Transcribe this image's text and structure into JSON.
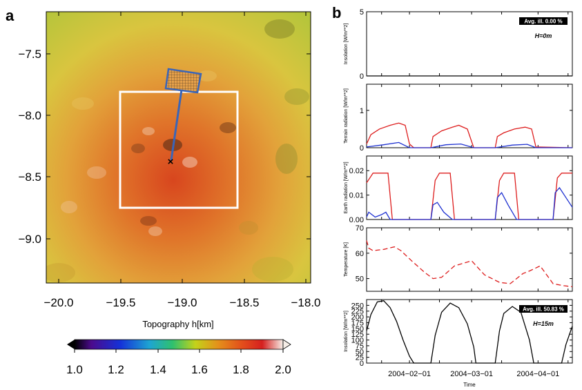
{
  "panel_a": {
    "label": "a",
    "xlabel": "Topography h[km]",
    "x_ticks": [
      "−20.0",
      "−19.5",
      "−19.0",
      "−18.5",
      "−18.0"
    ],
    "y_ticks": [
      "−7.5",
      "−8.0",
      "−8.5",
      "−9.0"
    ],
    "colorbar_ticks": [
      "1.0",
      "1.2",
      "1.4",
      "1.6",
      "1.8",
      "2.0"
    ]
  },
  "panel_b": {
    "label": "b",
    "xlabel": "Time",
    "x_ticks": [
      "2004−02−01",
      "2004−03−01",
      "2004−04−01"
    ],
    "subplots": [
      {
        "ylabel": "Insolation [W/m**2]",
        "y_ticks": [
          "0",
          "5"
        ],
        "badge": "Avg. ill. 0.00 %",
        "note": "H=0m"
      },
      {
        "ylabel": "Terrain radiation [W/m**2]",
        "y_ticks": [
          "0",
          "1"
        ]
      },
      {
        "ylabel": "Earth radiation [W/m**2]",
        "y_ticks": [
          "0.00",
          "0.01",
          "0.02"
        ]
      },
      {
        "ylabel": "Temperature [K]",
        "y_ticks": [
          "50",
          "60",
          "70"
        ]
      },
      {
        "ylabel": "Insolation [W/m**2]",
        "y_ticks": [
          "0",
          "25",
          "50",
          "75",
          "100",
          "125",
          "150",
          "175",
          "200",
          "225",
          "250"
        ],
        "badge": "Avg. ill. 50.83 %",
        "note": "H=15m"
      }
    ]
  },
  "colors": {
    "red": "#dd1c1c",
    "blue": "#1c2fd0",
    "black": "#000000",
    "box": "#ffffff",
    "probe": "#3a65b8"
  },
  "chart_data": [
    {
      "type": "heatmap",
      "title": "",
      "xlabel": "Topography h[km]",
      "ylabel": "",
      "xlim": [
        -20.1,
        -17.99
      ],
      "ylim": [
        -9.35,
        -7.1
      ],
      "colorbar": {
        "min": 1.0,
        "max": 2.0,
        "label": ""
      },
      "box_extent": {
        "x": [
          -19.5,
          -18.55
        ],
        "y": [
          -8.75,
          -7.8
        ]
      },
      "point": {
        "x": -19.08,
        "y": -8.37,
        "marker": "x"
      }
    },
    {
      "type": "line",
      "xlabel": "Time",
      "x_range": [
        "2004-01-12",
        "2004-04-17"
      ],
      "panels": [
        {
          "ylabel": "Insolation [W/m**2]",
          "ylim": [
            0,
            5
          ],
          "series": [
            {
              "color": "#000000",
              "x": [
                "2004-01-12",
                "2004-04-17"
              ],
              "y": [
                0,
                0
              ]
            }
          ]
        },
        {
          "ylabel": "Terrain radiation [W/m**2]",
          "ylim": [
            0,
            1.7
          ],
          "series": [
            {
              "color": "#dd1c1c",
              "x": [
                "2004-01-12",
                "2004-01-14",
                "2004-01-18",
                "2004-01-23",
                "2004-01-27",
                "2004-01-30",
                "2004-02-01",
                "2004-02-03",
                "2004-02-11",
                "2004-02-12",
                "2004-02-16",
                "2004-02-21",
                "2004-02-24",
                "2004-02-28",
                "2004-03-02",
                "2004-03-12",
                "2004-03-13",
                "2004-03-16",
                "2004-03-21",
                "2004-03-26",
                "2004-03-29",
                "2004-03-31",
                "2004-04-17"
              ],
              "y": [
                0.1,
                0.35,
                0.5,
                0.6,
                0.66,
                0.6,
                0.1,
                0,
                0,
                0.3,
                0.45,
                0.55,
                0.6,
                0.5,
                0,
                0,
                0.3,
                0.4,
                0.5,
                0.55,
                0.5,
                0.02,
                0
              ]
            },
            {
              "color": "#1c2fd0",
              "x": [
                "2004-01-12",
                "2004-01-20",
                "2004-01-27",
                "2004-02-01",
                "2004-02-11",
                "2004-02-18",
                "2004-02-25",
                "2004-03-02",
                "2004-03-12",
                "2004-03-20",
                "2004-03-27",
                "2004-03-31",
                "2004-04-17"
              ],
              "y": [
                0.02,
                0.08,
                0.14,
                0,
                0,
                0.08,
                0.1,
                0,
                0,
                0.07,
                0.09,
                0,
                0
              ]
            }
          ]
        },
        {
          "ylabel": "Earth radiation [W/m**2]",
          "ylim": [
            0,
            0.026
          ],
          "series": [
            {
              "color": "#dd1c1c",
              "x": [
                "2004-01-12",
                "2004-01-15",
                "2004-01-17",
                "2004-01-22",
                "2004-01-24",
                "2004-02-11",
                "2004-02-13",
                "2004-02-15",
                "2004-02-20",
                "2004-02-22",
                "2004-03-12",
                "2004-03-14",
                "2004-03-16",
                "2004-03-21",
                "2004-03-23",
                "2004-04-08",
                "2004-04-10",
                "2004-04-12",
                "2004-04-17"
              ],
              "y": [
                0.015,
                0.019,
                0.019,
                0.019,
                0,
                0,
                0.016,
                0.019,
                0.019,
                0,
                0,
                0.016,
                0.019,
                0.019,
                0,
                0,
                0.017,
                0.019,
                0.019
              ]
            },
            {
              "color": "#1c2fd0",
              "x": [
                "2004-01-12",
                "2004-01-13",
                "2004-01-16",
                "2004-01-19",
                "2004-01-21",
                "2004-01-23",
                "2004-02-11",
                "2004-02-12",
                "2004-02-14",
                "2004-02-17",
                "2004-02-21",
                "2004-03-12",
                "2004-03-13",
                "2004-03-15",
                "2004-03-18",
                "2004-03-22",
                "2004-04-08",
                "2004-04-09",
                "2004-04-11",
                "2004-04-14",
                "2004-04-17"
              ],
              "y": [
                0.001,
                0.003,
                0.001,
                0.002,
                0.003,
                0,
                0,
                0.006,
                0.007,
                0.003,
                0,
                0,
                0.009,
                0.011,
                0.006,
                0,
                0,
                0.011,
                0.013,
                0.009,
                0.005
              ]
            }
          ]
        },
        {
          "ylabel": "Temperature [K]",
          "ylim": [
            45,
            70
          ],
          "series": [
            {
              "color": "#dd1c1c",
              "dashed": true,
              "x": [
                "2004-01-12",
                "2004-01-13",
                "2004-01-15",
                "2004-01-20",
                "2004-01-25",
                "2004-01-28",
                "2004-02-02",
                "2004-02-08",
                "2004-02-12",
                "2004-02-16",
                "2004-02-22",
                "2004-02-26",
                "2004-03-01",
                "2004-03-07",
                "2004-03-14",
                "2004-03-19",
                "2004-03-25",
                "2004-03-28",
                "2004-04-02",
                "2004-04-08",
                "2004-04-13",
                "2004-04-17"
              ],
              "y": [
                65,
                62,
                61,
                61.5,
                62.5,
                61,
                57,
                52.5,
                50,
                50.5,
                55,
                56,
                57,
                51.5,
                48.5,
                48,
                52,
                53,
                55,
                48,
                47.2,
                46.8
              ]
            }
          ]
        },
        {
          "ylabel": "Insolation [W/m**2]",
          "ylim": [
            0,
            275
          ],
          "series": [
            {
              "color": "#000000",
              "x": [
                "2004-01-12",
                "2004-01-14",
                "2004-01-17",
                "2004-01-20",
                "2004-01-23",
                "2004-01-26",
                "2004-01-29",
                "2004-02-01",
                "2004-02-03",
                "2004-02-11",
                "2004-02-13",
                "2004-02-16",
                "2004-02-20",
                "2004-02-24",
                "2004-02-28",
                "2004-03-02",
                "2004-03-03",
                "2004-03-12",
                "2004-03-14",
                "2004-03-16",
                "2004-03-20",
                "2004-03-24",
                "2004-03-28",
                "2004-03-30",
                "2004-04-12",
                "2004-04-14",
                "2004-04-17"
              ],
              "y": [
                140,
                210,
                265,
                270,
                240,
                180,
                100,
                30,
                0,
                0,
                120,
                220,
                260,
                240,
                170,
                70,
                0,
                0,
                140,
                215,
                245,
                220,
                100,
                0,
                0,
                80,
                160
              ]
            }
          ]
        }
      ]
    }
  ]
}
